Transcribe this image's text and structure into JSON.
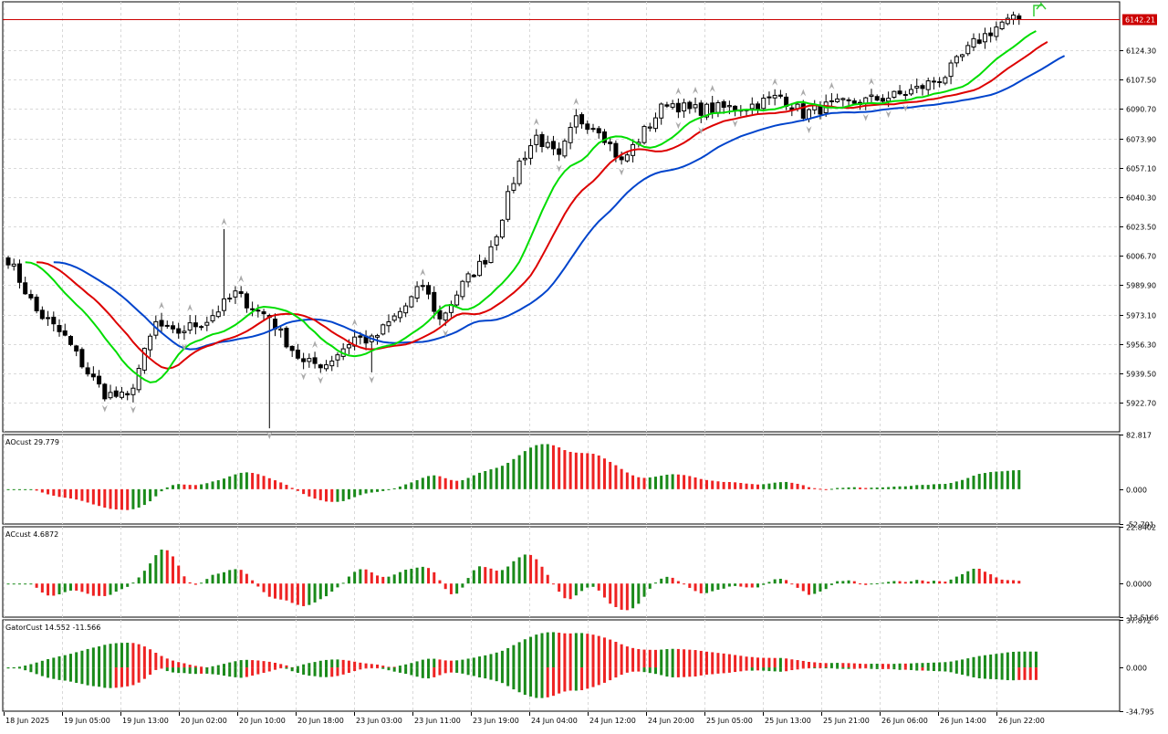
{
  "theme": {
    "background": "#ffffff",
    "grid": "#d9d9d9",
    "border": "#000000",
    "bull": "#ffffff",
    "bear": "#000000",
    "ma_fast": "#00dd00",
    "ma_mid": "#dd0000",
    "ma_slow": "#0044cc",
    "hist_up": "#1a8a1a",
    "hist_down": "#ee2222",
    "price_line": "#cc0000",
    "fractal": "#aaaaaa",
    "signal": "#33cc33"
  },
  "chart_data": [
    {
      "type": "candlestick",
      "panel": "price",
      "title": "",
      "current_price_label": "6142.21",
      "current_price": 6142.21,
      "ylim": [
        5906,
        6152
      ],
      "y_ticks": [
        "6124.30",
        "6107.50",
        "6090.70",
        "6073.90",
        "6057.10",
        "6040.30",
        "6023.50",
        "6006.70",
        "5989.90",
        "5973.10",
        "5956.30",
        "5939.50",
        "5922.70"
      ],
      "x_ticks": [
        "18 Jun 2025",
        "19 Jun 05:00",
        "19 Jun 13:00",
        "20 Jun 02:00",
        "20 Jun 10:00",
        "20 Jun 18:00",
        "23 Jun 03:00",
        "23 Jun 11:00",
        "23 Jun 19:00",
        "24 Jun 04:00",
        "24 Jun 12:00",
        "24 Jun 20:00",
        "25 Jun 05:00",
        "25 Jun 13:00",
        "25 Jun 21:00",
        "26 Jun 06:00",
        "26 Jun 14:00",
        "26 Jun 22:00"
      ],
      "overlays": [
        "alligator jaw (blue)",
        "alligator teeth (red)",
        "alligator lips (green)",
        "fractals"
      ]
    },
    {
      "type": "histogram",
      "panel": "AOcust",
      "label": "AOcust 29.779",
      "ylim": [
        -52.791,
        82.817
      ],
      "y_ticks": [
        "82.817",
        "0.000",
        "-52.791"
      ]
    },
    {
      "type": "histogram",
      "panel": "ACcust",
      "label": "ACcust 4.6872",
      "ylim": [
        -13.5166,
        22.8402
      ],
      "y_ticks": [
        "22.8402",
        "0.0000",
        "-13.5166"
      ]
    },
    {
      "type": "histogram",
      "panel": "GatorCust",
      "label": "GatorCust 14.552 -11.566",
      "ylim": [
        -34.795,
        37.872
      ],
      "y_ticks": [
        "37.872",
        "0.000",
        "-34.795"
      ]
    }
  ]
}
